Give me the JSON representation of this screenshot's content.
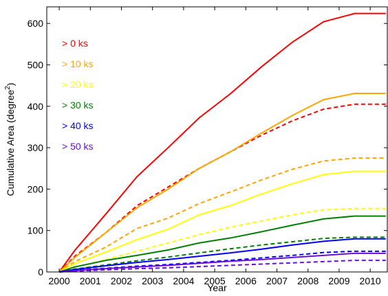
{
  "chart_data": {
    "type": "line",
    "xlabel": "Year",
    "ylabel_main": "Cumulative Area (degree",
    "ylabel_sup": "2",
    "ylabel_close": ")",
    "xlim": [
      1999.6,
      2010.55
    ],
    "ylim": [
      0,
      640
    ],
    "x_ticks": [
      2000,
      2001,
      2002,
      2003,
      2004,
      2005,
      2006,
      2007,
      2008,
      2009,
      2010
    ],
    "y_ticks": [
      0,
      100,
      200,
      300,
      400,
      500,
      600
    ],
    "x": [
      2000,
      2000.5,
      2001.5,
      2002.5,
      2003.5,
      2004.5,
      2005.5,
      2006.5,
      2007.5,
      2008.5,
      2009.5,
      2010.5
    ],
    "series": [
      {
        "name": "> 0 ks",
        "color": "#ff0000",
        "style": "solid",
        "values": [
          0,
          52,
          140,
          230,
          300,
          372,
          430,
          495,
          555,
          604,
          624,
          624
        ]
      },
      {
        "color": "#ff0000",
        "style": "dashed",
        "values": [
          0,
          38,
          95,
          160,
          205,
          250,
          290,
          330,
          365,
          393,
          405,
          405
        ]
      },
      {
        "name": "> 10 ks",
        "color": "#ffa500",
        "style": "solid",
        "values": [
          0,
          35,
          95,
          155,
          200,
          250,
          290,
          335,
          378,
          416,
          431,
          431
        ]
      },
      {
        "color": "#ffa500",
        "style": "dashed",
        "values": [
          0,
          25,
          60,
          105,
          130,
          165,
          193,
          222,
          248,
          268,
          275,
          275
        ]
      },
      {
        "name": "> 20 ks",
        "color": "#ffff00",
        "style": "solid",
        "values": [
          0,
          20,
          48,
          78,
          103,
          138,
          160,
          188,
          213,
          235,
          243,
          243
        ]
      },
      {
        "color": "#ffff00",
        "style": "dashed",
        "values": [
          0,
          12,
          30,
          50,
          70,
          90,
          108,
          123,
          138,
          150,
          153,
          153
        ]
      },
      {
        "name": "> 30 ks",
        "color": "#008000",
        "style": "solid",
        "values": [
          0,
          12,
          28,
          40,
          53,
          70,
          82,
          97,
          113,
          128,
          135,
          135
        ]
      },
      {
        "color": "#008000",
        "style": "dashed",
        "values": [
          0,
          7,
          17,
          27,
          36,
          46,
          56,
          65,
          73,
          81,
          84,
          84
        ]
      },
      {
        "name": "> 40 ks",
        "color": "#0000ff",
        "style": "solid",
        "values": [
          0,
          6,
          15,
          23,
          30,
          38,
          46,
          55,
          65,
          74,
          80,
          80
        ]
      },
      {
        "color": "#0000ff",
        "style": "dashed",
        "values": [
          0,
          4,
          9,
          14,
          18,
          23,
          28,
          34,
          40,
          47,
          50,
          50
        ]
      },
      {
        "name": "> 50 ks",
        "color": "#6a0dd8",
        "style": "solid",
        "values": [
          0,
          3,
          8,
          12,
          16,
          21,
          26,
          30,
          35,
          40,
          45,
          45
        ]
      },
      {
        "color": "#6a0dd8",
        "style": "dashed",
        "values": [
          0,
          2,
          5,
          8,
          10,
          13,
          16,
          19,
          22,
          25,
          28,
          28
        ]
      }
    ],
    "legend": {
      "placement": "top-left",
      "entries": [
        {
          "label": "> 0 ks",
          "color": "#ff0000"
        },
        {
          "label": "> 10 ks",
          "color": "#ffa500"
        },
        {
          "label": "> 20 ks",
          "color": "#ffff00"
        },
        {
          "label": "> 30 ks",
          "color": "#008000"
        },
        {
          "label": "> 40 ks",
          "color": "#0000ff"
        },
        {
          "label": "> 50 ks",
          "color": "#6a0dd8"
        }
      ]
    },
    "grid": false
  }
}
